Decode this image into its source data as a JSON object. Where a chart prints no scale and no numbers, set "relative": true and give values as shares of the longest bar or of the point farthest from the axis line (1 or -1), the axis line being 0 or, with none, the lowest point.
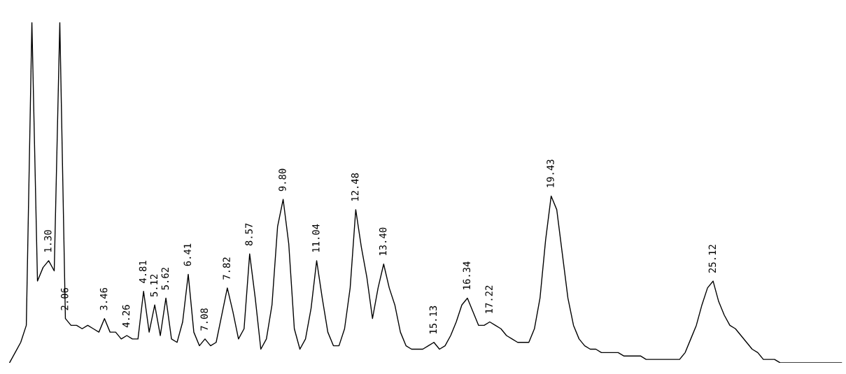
{
  "chart_data": {
    "type": "line",
    "relative": true,
    "tick_labels": false,
    "categories": [
      null,
      null,
      null,
      null,
      null,
      null,
      null,
      null,
      null,
      null,
      null,
      null,
      null,
      null,
      null,
      null,
      null,
      null,
      null,
      null,
      null,
      null,
      null,
      null,
      null,
      null,
      null,
      null,
      null,
      null,
      null,
      null,
      null,
      null,
      null,
      null,
      null,
      null,
      null,
      null,
      null,
      null,
      null,
      null,
      null,
      null,
      null,
      null,
      null,
      null,
      null,
      null,
      null,
      null,
      null,
      null,
      null,
      null,
      null,
      null,
      null,
      null,
      null,
      null,
      null,
      null,
      null,
      null,
      null,
      null,
      null,
      null,
      null,
      null,
      null,
      null,
      null,
      null,
      null,
      null,
      null,
      null,
      null,
      null,
      null,
      null,
      null,
      null,
      null,
      null,
      null,
      null,
      null,
      null,
      null,
      null,
      null,
      null,
      null,
      null,
      null,
      null,
      null,
      null,
      null,
      null,
      null,
      null,
      null,
      null,
      null,
      null,
      null,
      null,
      null,
      null,
      null,
      null,
      null,
      null,
      null,
      null,
      null,
      null,
      null,
      null,
      null,
      null,
      null,
      null,
      null,
      null,
      null,
      null,
      null,
      null,
      null,
      null,
      null,
      null,
      null,
      null,
      null,
      null,
      null,
      null,
      null,
      null,
      null,
      null
    ],
    "series": [
      {
        "color": "#000000",
        "values": [
          0,
          0.03,
          0.06,
          0.11,
          1.0,
          0.24,
          0.28,
          0.3,
          0.27,
          1.0,
          0.13,
          0.11,
          0.11,
          0.1,
          0.11,
          0.1,
          0.09,
          0.13,
          0.09,
          0.09,
          0.07,
          0.08,
          0.07,
          0.07,
          0.21,
          0.09,
          0.17,
          0.08,
          0.19,
          0.07,
          0.06,
          0.12,
          0.26,
          0.09,
          0.05,
          0.07,
          0.05,
          0.06,
          0.14,
          0.22,
          0.15,
          0.07,
          0.1,
          0.32,
          0.19,
          0.04,
          0.07,
          0.17,
          0.4,
          0.48,
          0.35,
          0.1,
          0.04,
          0.07,
          0.16,
          0.3,
          0.19,
          0.09,
          0.05,
          0.05,
          0.1,
          0.22,
          0.45,
          0.34,
          0.25,
          0.13,
          0.22,
          0.29,
          0.22,
          0.17,
          0.09,
          0.05,
          0.04,
          0.04,
          0.04,
          0.05,
          0.06,
          0.04,
          0.05,
          0.08,
          0.12,
          0.17,
          0.19,
          0.15,
          0.11,
          0.11,
          0.12,
          0.11,
          0.1,
          0.08,
          0.07,
          0.06,
          0.06,
          0.06,
          0.1,
          0.19,
          0.36,
          0.49,
          0.45,
          0.32,
          0.19,
          0.11,
          0.07,
          0.05,
          0.04,
          0.04,
          0.03,
          0.03,
          0.03,
          0.03,
          0.02,
          0.02,
          0.02,
          0.02,
          0.01,
          0.01,
          0.01,
          0.01,
          0.01,
          0.01,
          0.01,
          0.03,
          0.07,
          0.11,
          0.17,
          0.22,
          0.24,
          0.18,
          0.14,
          0.11,
          0.1,
          0.08,
          0.06,
          0.04,
          0.03,
          0.01,
          0.01,
          0.01,
          0,
          0,
          0,
          0,
          0,
          0,
          0,
          0,
          0,
          0,
          0,
          0
        ]
      }
    ],
    "annotations": [
      {
        "text": "1.30",
        "y": 0.3
      },
      {
        "text": "2.06",
        "y": 0.13
      },
      {
        "text": "3.46",
        "y": 0.13
      },
      {
        "text": "4.26",
        "y": 0.08
      },
      {
        "text": "4.81",
        "y": 0.21
      },
      {
        "text": "5.12",
        "y": 0.17
      },
      {
        "text": "5.62",
        "y": 0.19
      },
      {
        "text": "6.41",
        "y": 0.26
      },
      {
        "text": "7.08",
        "y": 0.07
      },
      {
        "text": "7.82",
        "y": 0.22
      },
      {
        "text": "8.57",
        "y": 0.32
      },
      {
        "text": "9.80",
        "y": 0.48
      },
      {
        "text": "11.04",
        "y": 0.3
      },
      {
        "text": "12.48",
        "y": 0.45
      },
      {
        "text": "13.40",
        "y": 0.29
      },
      {
        "text": "15.13",
        "y": 0.06
      },
      {
        "text": "16.34",
        "y": 0.19
      },
      {
        "text": "17.22",
        "y": 0.12
      },
      {
        "text": "19.43",
        "y": 0.49
      },
      {
        "text": "25.12",
        "y": 0.24
      }
    ]
  }
}
